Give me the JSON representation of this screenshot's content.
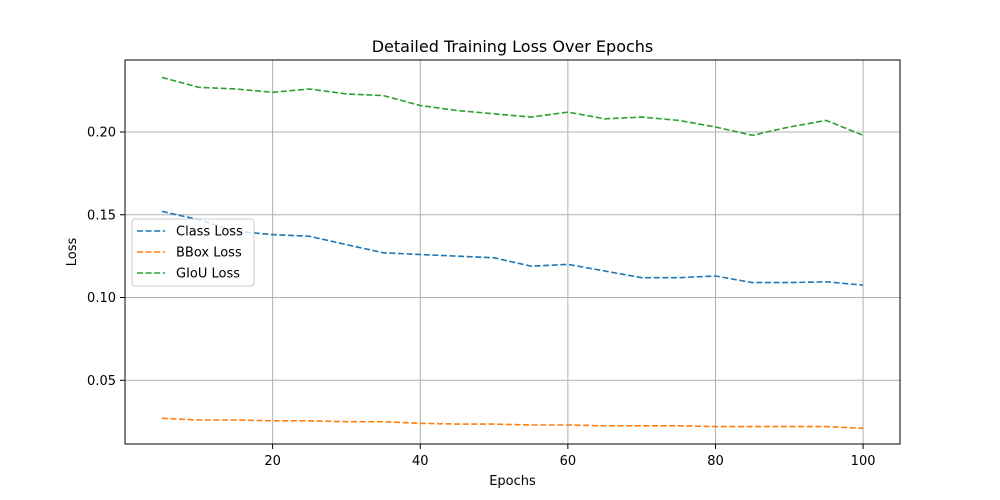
{
  "chart_data": {
    "type": "line",
    "title": "Detailed Training Loss Over Epochs",
    "xlabel": "Epochs",
    "ylabel": "Loss",
    "xlim": [
      0,
      105
    ],
    "ylim": [
      0.0115,
      0.2435
    ],
    "xticks": [
      20,
      40,
      60,
      80,
      100
    ],
    "xtick_labels": [
      "20",
      "40",
      "60",
      "80",
      "100"
    ],
    "yticks": [
      0.05,
      0.1,
      0.15,
      0.2
    ],
    "ytick_labels": [
      "0.05",
      "0.10",
      "0.15",
      "0.20"
    ],
    "grid": true,
    "legend_position": "center-left",
    "x": [
      5,
      10,
      15,
      20,
      25,
      30,
      35,
      40,
      45,
      50,
      55,
      60,
      65,
      70,
      75,
      80,
      85,
      90,
      95,
      100
    ],
    "series": [
      {
        "name": "Class Loss",
        "color": "#1f77b4",
        "style": "dashed",
        "values": [
          0.152,
          0.147,
          0.14,
          0.138,
          0.137,
          0.132,
          0.127,
          0.126,
          0.125,
          0.124,
          0.119,
          0.12,
          0.116,
          0.112,
          0.112,
          0.113,
          0.109,
          0.109,
          0.1095,
          0.1075
        ]
      },
      {
        "name": "BBox Loss",
        "color": "#ff7f0e",
        "style": "dashed",
        "values": [
          0.027,
          0.026,
          0.026,
          0.0255,
          0.0255,
          0.025,
          0.025,
          0.024,
          0.0235,
          0.0235,
          0.023,
          0.023,
          0.0225,
          0.0225,
          0.0225,
          0.022,
          0.022,
          0.022,
          0.022,
          0.021
        ]
      },
      {
        "name": "GIoU Loss",
        "color": "#2ca02c",
        "style": "dashed",
        "values": [
          0.233,
          0.227,
          0.226,
          0.224,
          0.226,
          0.223,
          0.222,
          0.216,
          0.213,
          0.211,
          0.209,
          0.212,
          0.208,
          0.209,
          0.207,
          0.203,
          0.198,
          0.203,
          0.207,
          0.198
        ]
      }
    ]
  }
}
